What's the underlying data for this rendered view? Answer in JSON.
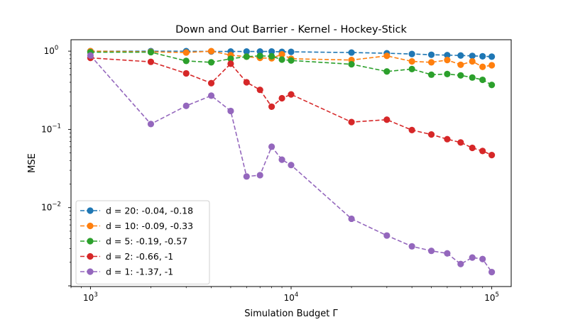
{
  "chart_data": {
    "type": "line",
    "title": "Down and Out Barrier - Kernel - Hockey-Stick",
    "xlabel": "Simulation Budget Γ",
    "ylabel": "MSE",
    "xscale": "log",
    "yscale": "log",
    "xlim": [
      800,
      125000
    ],
    "ylim": [
      0.00098,
      1.4
    ],
    "grid": false,
    "legend_position": "lower-left",
    "x_ticks": [
      {
        "value": 1000,
        "base": "10",
        "exp": "3"
      },
      {
        "value": 10000,
        "base": "10",
        "exp": "4"
      },
      {
        "value": 100000,
        "base": "10",
        "exp": "5"
      }
    ],
    "y_ticks": [
      {
        "value": 1,
        "base": "10",
        "exp": "0"
      },
      {
        "value": 0.1,
        "base": "10",
        "exp": "−1"
      },
      {
        "value": 0.01,
        "base": "10",
        "exp": "−2"
      }
    ],
    "x": [
      1000,
      2000,
      3000,
      4000,
      5000,
      6000,
      7000,
      8000,
      9000,
      10000,
      20000,
      30000,
      40000,
      50000,
      60000,
      70000,
      80000,
      90000,
      100000
    ],
    "series": [
      {
        "name": "d = 20: -0.04, -0.18",
        "color": "#1f77b4",
        "values": [
          1.0,
          1.0,
          1.0,
          0.99,
          0.99,
          0.99,
          0.99,
          0.99,
          0.98,
          0.98,
          0.96,
          0.94,
          0.92,
          0.9,
          0.89,
          0.88,
          0.87,
          0.86,
          0.85
        ]
      },
      {
        "name": "d = 10: -0.09, -0.33",
        "color": "#ff7f0e",
        "values": [
          1.0,
          0.98,
          0.96,
          1.0,
          0.89,
          0.85,
          0.82,
          0.81,
          0.91,
          0.8,
          0.77,
          0.87,
          0.74,
          0.72,
          0.77,
          0.67,
          0.74,
          0.63,
          0.66
        ]
      },
      {
        "name": "d = 5: -0.19, -0.57",
        "color": "#2ca02c",
        "values": [
          0.97,
          0.97,
          0.75,
          0.72,
          0.8,
          0.85,
          0.87,
          0.86,
          0.78,
          0.76,
          0.68,
          0.55,
          0.59,
          0.5,
          0.51,
          0.49,
          0.46,
          0.43,
          0.37
        ]
      },
      {
        "name": "d = 2: -0.66, -1",
        "color": "#d62728",
        "values": [
          0.82,
          0.73,
          0.52,
          0.39,
          0.69,
          0.4,
          0.32,
          0.195,
          0.25,
          0.28,
          0.124,
          0.133,
          0.098,
          0.086,
          0.075,
          0.068,
          0.058,
          0.053,
          0.047
        ]
      },
      {
        "name": "d = 1: -1.37, -1",
        "color": "#9467bd",
        "values": [
          0.88,
          0.117,
          0.2,
          0.27,
          0.172,
          0.025,
          0.026,
          0.06,
          0.041,
          0.035,
          0.0072,
          0.0044,
          0.0032,
          0.0028,
          0.0026,
          0.0019,
          0.0023,
          0.0022,
          0.0015
        ]
      }
    ]
  }
}
